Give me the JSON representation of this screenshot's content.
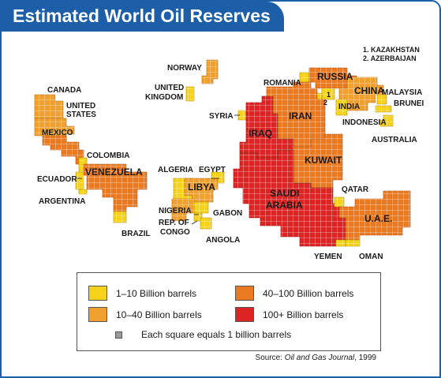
{
  "title": "Estimated World Oil Reserves",
  "colors": {
    "frame": "#1d5ea8",
    "tier_1_10": "#f6d21a",
    "tier_10_40": "#efa02e",
    "tier_40_100": "#ea7a22",
    "tier_100_plus": "#dd2424",
    "grid_line": "#ffffff"
  },
  "countries": [
    {
      "label": "CANADA",
      "tier": "10-40"
    },
    {
      "label": "UNITED STATES",
      "tier": "10-40"
    },
    {
      "label": "MEXICO",
      "tier": "40-100"
    },
    {
      "label": "COLOMBIA",
      "tier": "1-10"
    },
    {
      "label": "ECUADOR",
      "tier": "1-10"
    },
    {
      "label": "VENEZUELA",
      "tier": "40-100"
    },
    {
      "label": "ARGENTINA",
      "tier": "1-10"
    },
    {
      "label": "BRAZIL",
      "tier": "1-10"
    },
    {
      "label": "NORWAY",
      "tier": "10-40"
    },
    {
      "label": "UNITED KINGDOM",
      "tier": "1-10"
    },
    {
      "label": "ROMANIA",
      "tier": "1-10"
    },
    {
      "label": "RUSSIA",
      "tier": "40-100"
    },
    {
      "label": "KAZAKHSTAN",
      "tier": "1-10"
    },
    {
      "label": "AZERBAIJAN",
      "tier": "1-10"
    },
    {
      "label": "CHINA",
      "tier": "10-40"
    },
    {
      "label": "INDIA",
      "tier": "1-10"
    },
    {
      "label": "MALAYSIA",
      "tier": "1-10"
    },
    {
      "label": "BRUNEI",
      "tier": "1-10"
    },
    {
      "label": "INDONESIA",
      "tier": "1-10"
    },
    {
      "label": "AUSTRALIA",
      "tier": "1-10"
    },
    {
      "label": "SYRIA",
      "tier": "1-10"
    },
    {
      "label": "IRAQ",
      "tier": "100+"
    },
    {
      "label": "IRAN",
      "tier": "40-100"
    },
    {
      "label": "KUWAIT",
      "tier": "40-100"
    },
    {
      "label": "SAUDI ARABIA",
      "tier": "100+"
    },
    {
      "label": "QATAR",
      "tier": "1-10"
    },
    {
      "label": "U.A.E.",
      "tier": "40-100"
    },
    {
      "label": "YEMEN",
      "tier": "1-10"
    },
    {
      "label": "OMAN",
      "tier": "1-10"
    },
    {
      "label": "ALGERIA",
      "tier": "1-10"
    },
    {
      "label": "EGYPT",
      "tier": "1-10"
    },
    {
      "label": "LIBYA",
      "tier": "10-40"
    },
    {
      "label": "NIGERIA",
      "tier": "10-40"
    },
    {
      "label": "GABON",
      "tier": "1-10"
    },
    {
      "label": "REP. OF CONGO",
      "tier": "1-10"
    },
    {
      "label": "ANGOLA",
      "tier": "1-10"
    }
  ],
  "map_text": {
    "canada": "CANADA",
    "us_line1": "UNITED",
    "us_line2": "STATES",
    "mexico": "MEXICO",
    "colombia": "COLOMBIA",
    "ecuador": "ECUADOR",
    "venezuela": "VENEZUELA",
    "argentina": "ARGENTINA",
    "brazil": "BRAZIL",
    "norway": "NORWAY",
    "uk_line1": "UNITED",
    "uk_line2": "KINGDOM",
    "romania": "ROMANIA",
    "russia": "RUSSIA",
    "marker_1": "1",
    "marker_2": "2",
    "china": "CHINA",
    "india": "INDIA",
    "malaysia": "MALAYSIA",
    "brunei": "BRUNEI",
    "indonesia": "INDONESIA",
    "australia": "AUSTRALIA",
    "syria": "SYRIA",
    "iraq": "IRAQ",
    "iran": "IRAN",
    "kuwait": "KUWAIT",
    "saudi_line1": "SAUDI",
    "saudi_line2": "ARABIA",
    "qatar": "QATAR",
    "uae": "U.A.E.",
    "yemen": "YEMEN",
    "oman": "OMAN",
    "algeria": "ALGERIA",
    "egypt": "EGYPT",
    "libya": "LIBYA",
    "nigeria": "NIGERIA",
    "gabon": "GABON",
    "congo_line1": "REP. OF",
    "congo_line2": "CONGO",
    "angola": "ANGOLA"
  },
  "notes": [
    "1. KAZAKHSTAN",
    "2. AZERBAIJAN"
  ],
  "legend": {
    "tier_1_10": "1–10 Billion barrels",
    "tier_10_40": "10–40 Billion barrels",
    "tier_40_100": "40–100 Billion barrels",
    "tier_100_plus": "100+ Billion barrels",
    "square_note": "Each square equals 1 billion barrels"
  },
  "source": {
    "prefix": "Source: ",
    "publication": "Oil and Gas Journal",
    "suffix": ", 1999"
  }
}
